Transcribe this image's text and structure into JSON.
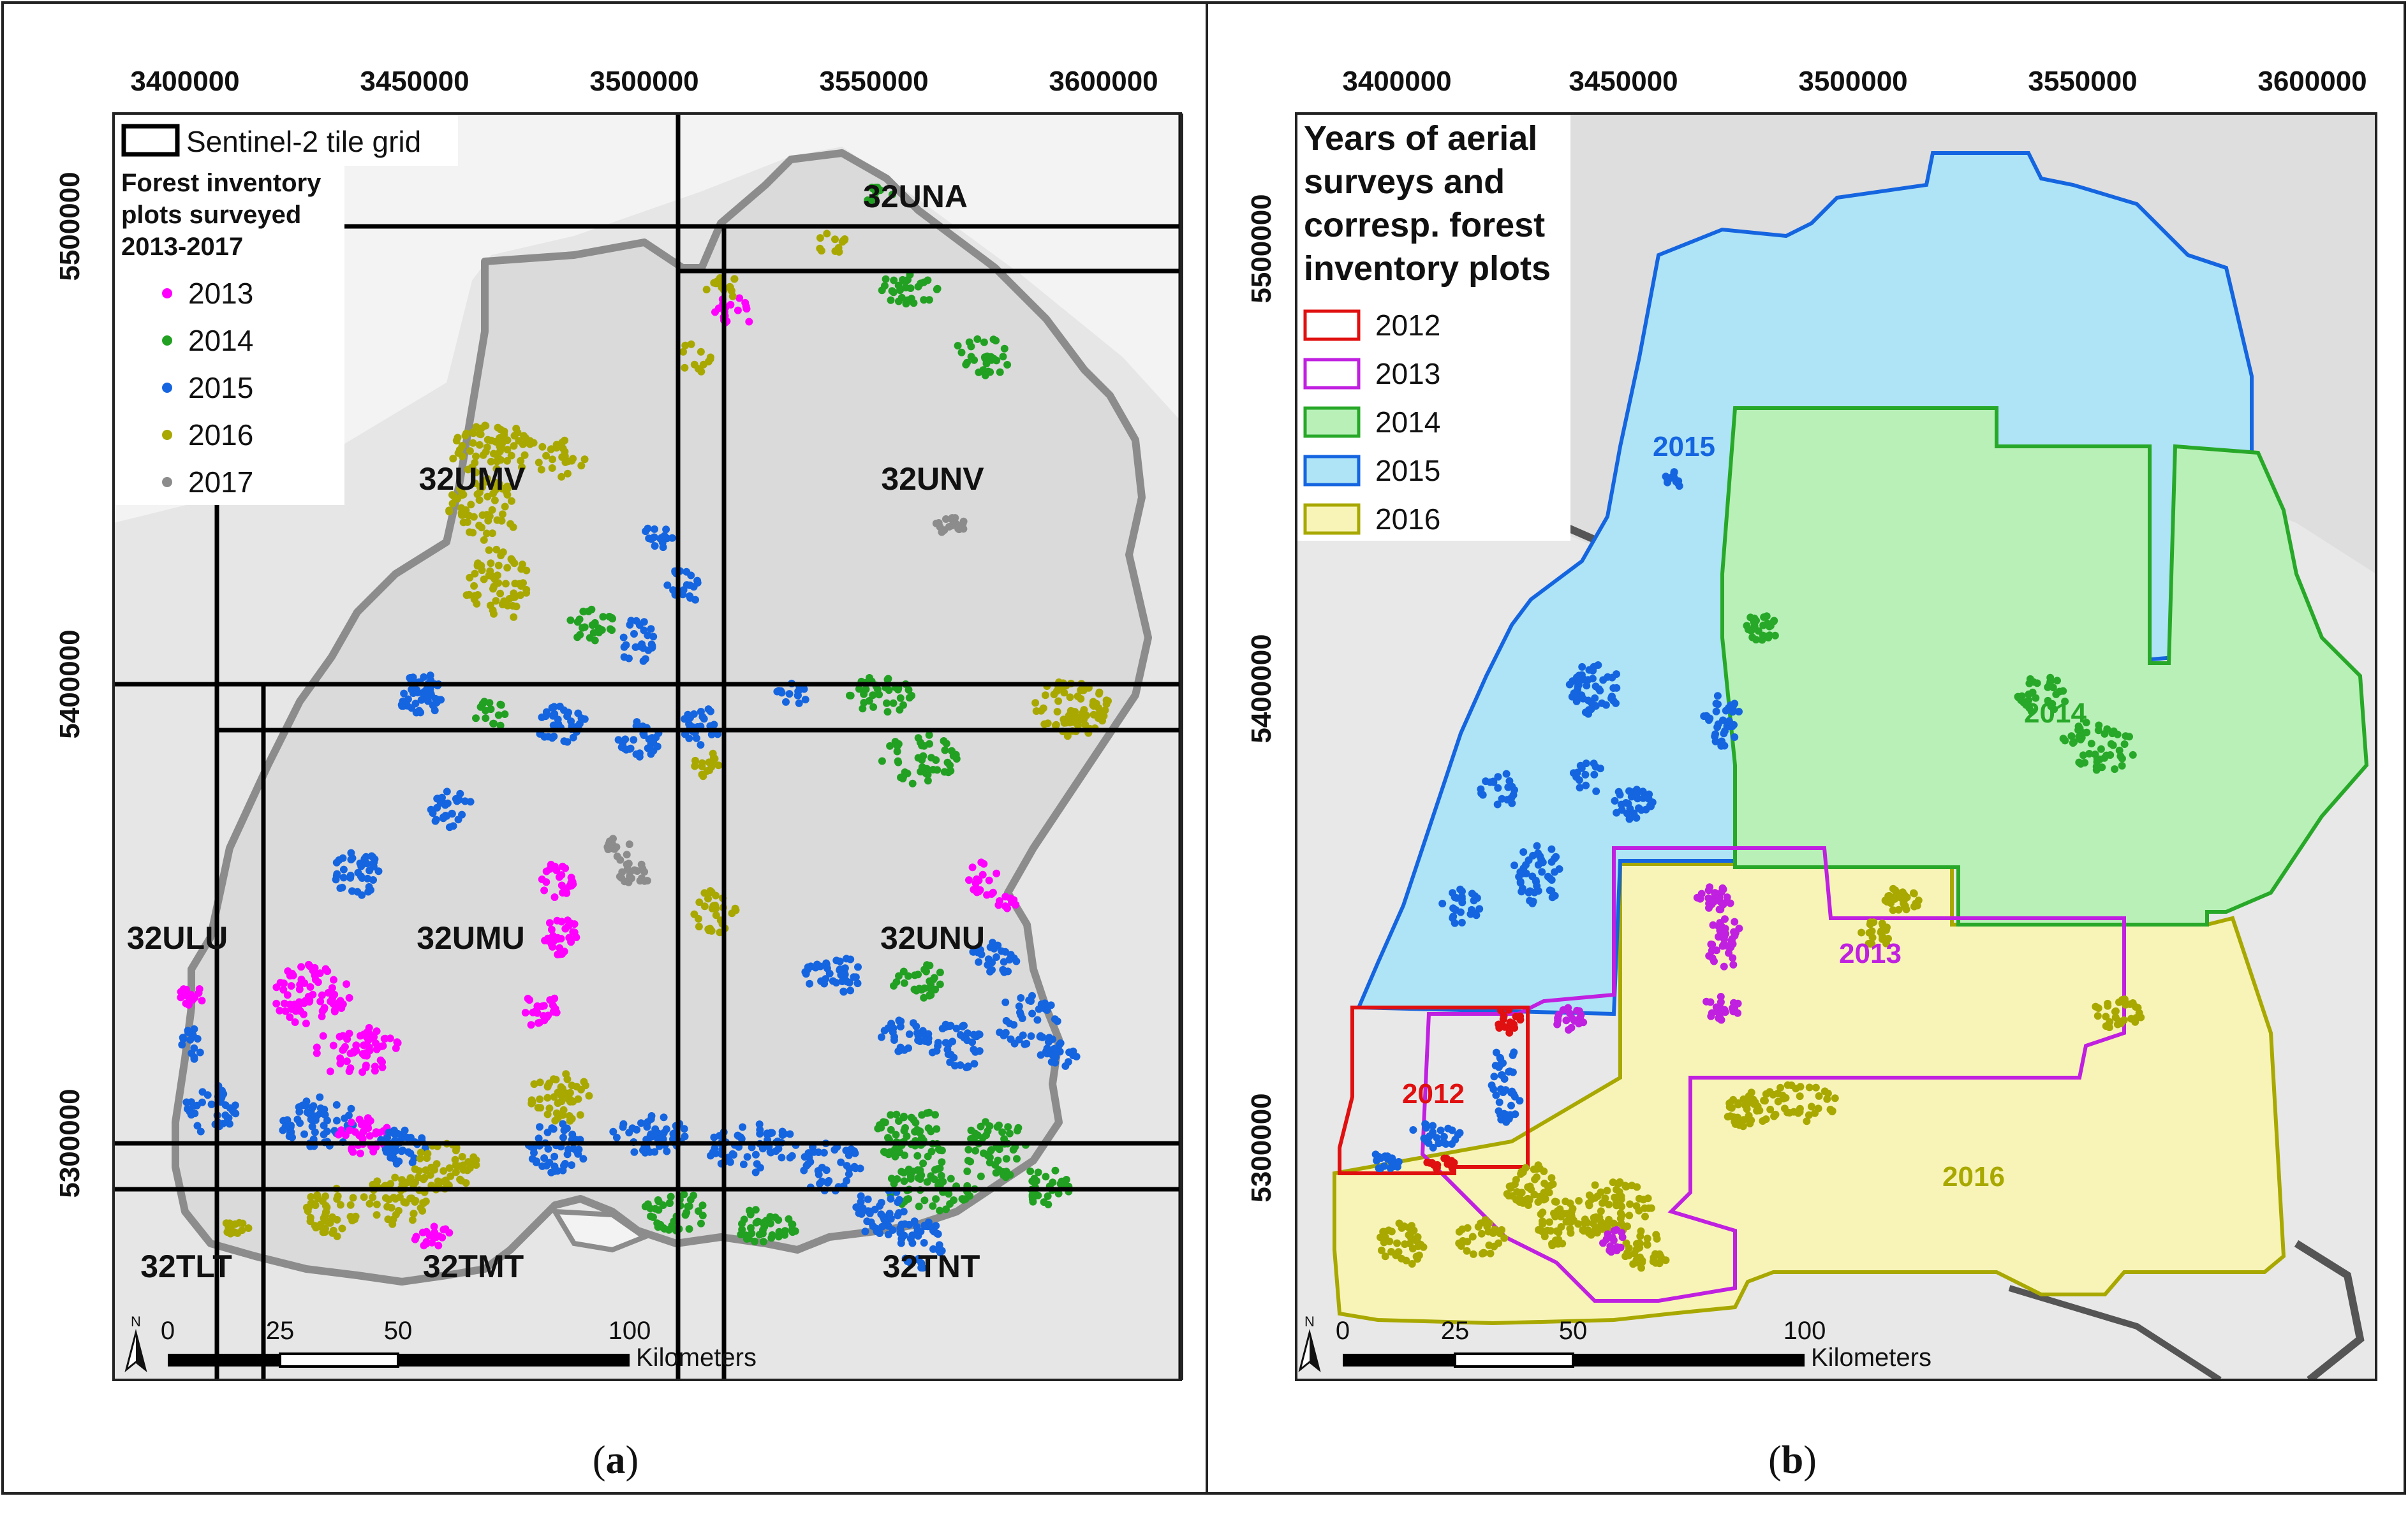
{
  "panel_a": {
    "x_ticks": [
      "3400000",
      "3450000",
      "3500000",
      "3550000",
      "3600000"
    ],
    "y_ticks": [
      "5500000",
      "5400000",
      "5300000"
    ],
    "legend": {
      "grid_label": "Sentinel-2 tile grid",
      "title_line1": "Forest inventory",
      "title_line2": "plots surveyed",
      "title_line3": "2013-2017",
      "items": [
        {
          "label": "2013",
          "color": "#ff00ff"
        },
        {
          "label": "2014",
          "color": "#22a022"
        },
        {
          "label": "2015",
          "color": "#1565e0"
        },
        {
          "label": "2016",
          "color": "#a8a800"
        },
        {
          "label": "2017",
          "color": "#8c8c8c"
        }
      ]
    },
    "tiles": [
      "32UNA",
      "32UMV",
      "32UNV",
      "32ULU",
      "32UMU",
      "32UNU",
      "32TLT",
      "32TMT",
      "32TNT"
    ],
    "scale": {
      "labels": [
        "0",
        "25",
        "50",
        "100"
      ],
      "unit": "Kilometers"
    },
    "north": "N",
    "caption": {
      "open": "(",
      "letter": "a",
      "close": ")"
    }
  },
  "panel_b": {
    "x_ticks": [
      "3400000",
      "3450000",
      "3500000",
      "3550000",
      "3600000"
    ],
    "y_ticks": [
      "5500000",
      "5400000",
      "5300000"
    ],
    "legend": {
      "title_line1": "Years of aerial",
      "title_line2": "surveys and",
      "title_line3": "corresp. forest",
      "title_line4": "inventory plots",
      "items": [
        {
          "label": "2012",
          "stroke": "#e01010",
          "fill": "#ffffff"
        },
        {
          "label": "2013",
          "stroke": "#c020e0",
          "fill": "#ffffff"
        },
        {
          "label": "2014",
          "stroke": "#28a828",
          "fill": "#b8f0b8"
        },
        {
          "label": "2015",
          "stroke": "#1565e0",
          "fill": "#aee4f6"
        },
        {
          "label": "2016",
          "stroke": "#a8a800",
          "fill": "#f8f4b8"
        }
      ]
    },
    "area_labels": [
      {
        "text": "2015",
        "color": "#1565e0"
      },
      {
        "text": "2014",
        "color": "#28a828"
      },
      {
        "text": "2013",
        "color": "#c020e0"
      },
      {
        "text": "2012",
        "color": "#e01010"
      },
      {
        "text": "2016",
        "color": "#a8a800"
      }
    ],
    "scale": {
      "labels": [
        "0",
        "25",
        "50",
        "100"
      ],
      "unit": "Kilometers"
    },
    "north": "N",
    "caption": {
      "open": "(",
      "letter": "b",
      "close": ")"
    }
  }
}
